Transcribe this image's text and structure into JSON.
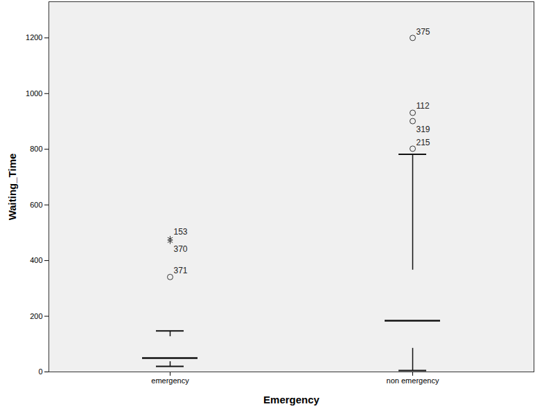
{
  "chart_data": {
    "type": "box",
    "x_label": "Emergency",
    "y_label": "Waiting_Time",
    "categories": [
      "emergency",
      "non emergency"
    ],
    "color": "#d4cc99",
    "boxes": [
      {
        "whisker_low": 20,
        "q1": 37,
        "median": 50,
        "q3": 127,
        "whisker_high": 147,
        "outliers": [
          {
            "label": "153",
            "value": 478,
            "marker": "star"
          },
          {
            "label": "370",
            "value": 470,
            "marker": "star"
          },
          {
            "label": "371",
            "value": 341,
            "marker": "circle"
          }
        ]
      },
      {
        "whisker_low": 5,
        "q1": 85,
        "median": 184,
        "q3": 366,
        "whisker_high": 782,
        "outliers": [
          {
            "label": "375",
            "value": 1200,
            "marker": "circle"
          },
          {
            "label": "112",
            "value": 931,
            "marker": "circle"
          },
          {
            "label": "319",
            "value": 901,
            "marker": "circle"
          },
          {
            "label": "215",
            "value": 802,
            "marker": "circle"
          }
        ]
      }
    ],
    "ylim": [
      0,
      1330
    ],
    "yticks": [
      0,
      200,
      400,
      600,
      800,
      1000,
      1200
    ],
    "grid": false
  }
}
